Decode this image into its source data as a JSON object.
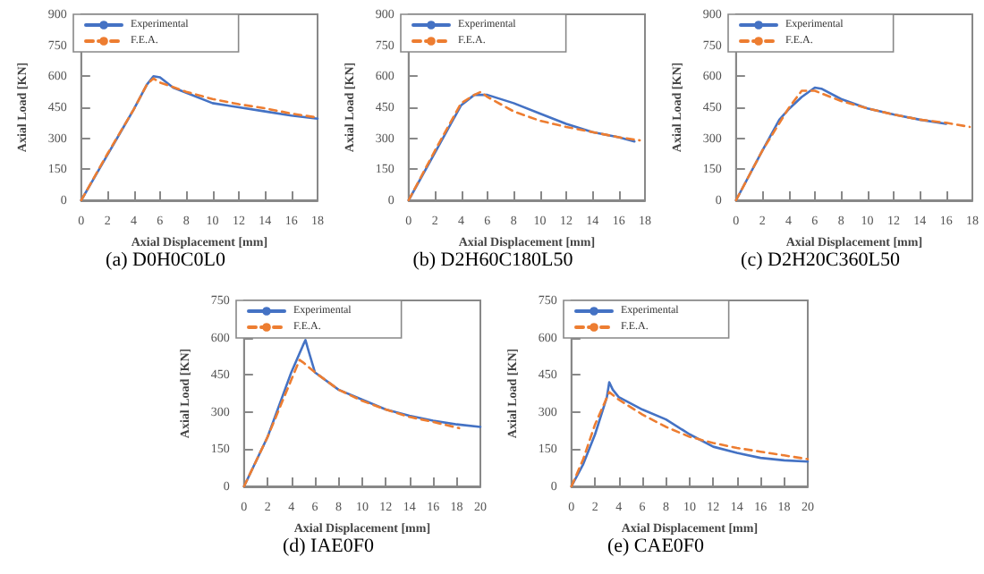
{
  "chart_data": [
    {
      "type": "line",
      "title": "(a) D0H0C0L0",
      "xlabel": "Axial Displacement [mm]",
      "ylabel": "Axial Load [KN]",
      "xlim": [
        0,
        18
      ],
      "xticks": [
        0,
        2,
        4,
        6,
        8,
        10,
        12,
        14,
        16,
        18
      ],
      "ylim": [
        0,
        900
      ],
      "yticks": [
        0,
        150,
        300,
        450,
        600,
        750,
        900
      ],
      "grid": false,
      "legend": "top left",
      "marker": "none",
      "series": [
        {
          "name": "Experimental",
          "color": "#4472c4",
          "line_style": "solid",
          "x": [
            0,
            1,
            2,
            3,
            4,
            5,
            5.5,
            6,
            6.5,
            7,
            8,
            10,
            12,
            14,
            16,
            18
          ],
          "values": [
            0,
            110,
            220,
            330,
            440,
            560,
            600,
            595,
            570,
            545,
            520,
            470,
            450,
            430,
            410,
            395
          ]
        },
        {
          "name": "F.E.A.",
          "color": "#ed7d31",
          "line_style": "dashed",
          "x": [
            0,
            2,
            4,
            5,
            5.5,
            6,
            8,
            10,
            12,
            14,
            16,
            18
          ],
          "values": [
            0,
            225,
            440,
            560,
            590,
            570,
            525,
            490,
            465,
            445,
            420,
            400
          ]
        }
      ]
    },
    {
      "type": "line",
      "title": "(b) D2H60C180L50",
      "xlabel": "Axial Displacement [mm]",
      "ylabel": "Axial Load [KN]",
      "xlim": [
        0,
        18
      ],
      "xticks": [
        0,
        2,
        4,
        6,
        8,
        10,
        12,
        14,
        16,
        18
      ],
      "ylim": [
        0,
        900
      ],
      "yticks": [
        0,
        150,
        300,
        450,
        600,
        750,
        900
      ],
      "grid": false,
      "legend": "top left",
      "marker": "none",
      "series": [
        {
          "name": "Experimental",
          "color": "#4472c4",
          "line_style": "solid",
          "x": [
            0,
            2,
            4,
            5,
            6,
            8,
            10,
            12,
            14,
            16,
            17.2
          ],
          "values": [
            0,
            230,
            460,
            510,
            510,
            470,
            420,
            370,
            330,
            305,
            285
          ]
        },
        {
          "name": "F.E.A.",
          "color": "#ed7d31",
          "line_style": "dashed",
          "x": [
            0,
            2,
            4,
            5,
            5.5,
            6,
            8,
            10,
            12,
            14,
            16,
            17.6
          ],
          "values": [
            0,
            240,
            470,
            510,
            525,
            500,
            430,
            385,
            355,
            330,
            305,
            290
          ]
        }
      ]
    },
    {
      "type": "line",
      "title": "(c) D2H20C360L50",
      "xlabel": "Axial Displacement [mm]",
      "ylabel": "Axial Load [KN]",
      "xlim": [
        0,
        18
      ],
      "xticks": [
        0,
        2,
        4,
        6,
        8,
        10,
        12,
        14,
        16,
        18
      ],
      "ylim": [
        0,
        900
      ],
      "yticks": [
        0,
        150,
        300,
        450,
        600,
        750,
        900
      ],
      "grid": false,
      "legend": "top left",
      "marker": "none",
      "series": [
        {
          "name": "Experimental",
          "color": "#4472c4",
          "line_style": "solid",
          "x": [
            0,
            2,
            3.3,
            4,
            5,
            6,
            6.5,
            8,
            10,
            12,
            14,
            16
          ],
          "values": [
            0,
            240,
            390,
            440,
            500,
            545,
            540,
            490,
            445,
            415,
            390,
            370
          ]
        },
        {
          "name": "F.E.A.",
          "color": "#ed7d31",
          "line_style": "dashed",
          "x": [
            0,
            2,
            4,
            5,
            6,
            8,
            10,
            12,
            14,
            16,
            17.8
          ],
          "values": [
            0,
            240,
            445,
            530,
            530,
            480,
            445,
            415,
            390,
            375,
            355
          ]
        }
      ]
    },
    {
      "type": "line",
      "title": "(d) IAE0F0",
      "xlabel": "Axial Displacement [mm]",
      "ylabel": "Axial Load [KN]",
      "xlim": [
        0,
        20
      ],
      "xticks": [
        0,
        2,
        4,
        6,
        8,
        10,
        12,
        14,
        16,
        18,
        20
      ],
      "ylim": [
        0,
        750
      ],
      "yticks": [
        0,
        150,
        300,
        450,
        600,
        750
      ],
      "grid": false,
      "legend": "top left",
      "marker": "none",
      "series": [
        {
          "name": "Experimental",
          "color": "#4472c4",
          "line_style": "solid",
          "x": [
            0,
            2,
            4,
            5,
            5.2,
            5.5,
            6,
            8,
            10,
            12,
            14,
            16,
            18,
            20
          ],
          "values": [
            0,
            200,
            460,
            570,
            590,
            540,
            460,
            390,
            350,
            310,
            285,
            265,
            250,
            240
          ]
        },
        {
          "name": "F.E.A.",
          "color": "#ed7d31",
          "line_style": "dashed",
          "x": [
            0,
            2,
            4,
            4.7,
            5,
            6,
            8,
            10,
            12,
            14,
            16,
            18.2
          ],
          "values": [
            0,
            200,
            430,
            510,
            500,
            460,
            390,
            345,
            310,
            280,
            260,
            235
          ]
        }
      ]
    },
    {
      "type": "line",
      "title": "(e) CAE0F0",
      "xlabel": "Axial Displacement [mm]",
      "ylabel": "Axial Load [KN]",
      "xlim": [
        0,
        20
      ],
      "xticks": [
        0,
        2,
        4,
        6,
        8,
        10,
        12,
        14,
        16,
        18,
        20
      ],
      "ylim": [
        0,
        750
      ],
      "yticks": [
        0,
        150,
        300,
        450,
        600,
        750
      ],
      "grid": false,
      "legend": "top left",
      "marker": "none",
      "series": [
        {
          "name": "Experimental",
          "color": "#4472c4",
          "line_style": "solid",
          "x": [
            0,
            1,
            2,
            3,
            3.2,
            3.5,
            4,
            6,
            8,
            10,
            12,
            14,
            16,
            18,
            20
          ],
          "values": [
            0,
            90,
            210,
            360,
            420,
            390,
            360,
            310,
            270,
            210,
            160,
            135,
            115,
            105,
            100
          ]
        },
        {
          "name": "F.E.A.",
          "color": "#ed7d31",
          "line_style": "dashed",
          "x": [
            0,
            1,
            2,
            3.2,
            4,
            6,
            8,
            10,
            12,
            14,
            16,
            18,
            20
          ],
          "values": [
            0,
            110,
            250,
            380,
            350,
            290,
            240,
            200,
            175,
            155,
            140,
            125,
            110
          ]
        }
      ]
    }
  ]
}
